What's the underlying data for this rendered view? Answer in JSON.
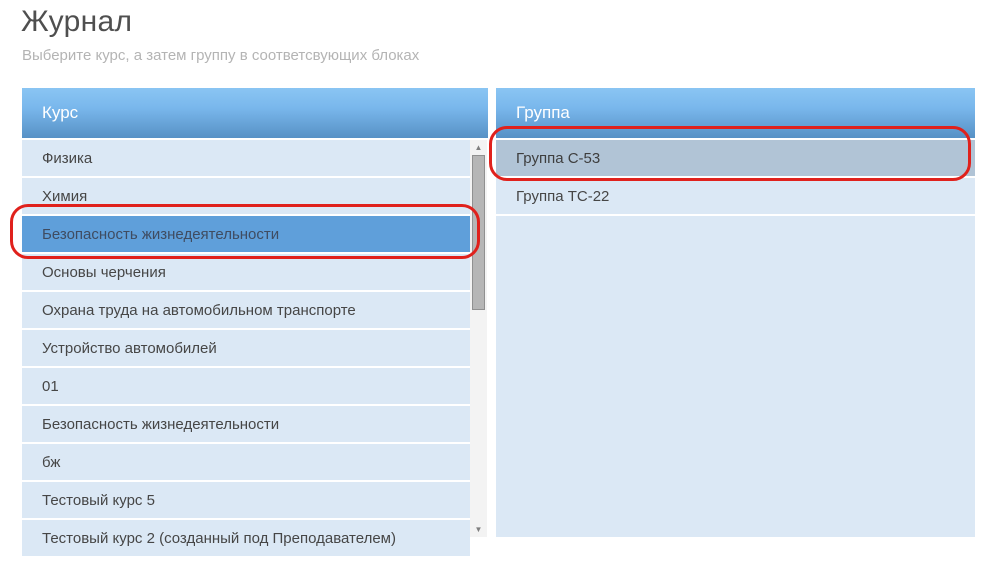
{
  "page": {
    "title": "Журнал",
    "subtitle": "Выберите курс, а затем группу в соответсвующих блоках"
  },
  "course_panel": {
    "header": "Курс",
    "items": [
      {
        "label": "Физика",
        "selected": false
      },
      {
        "label": "Химия",
        "selected": false
      },
      {
        "label": "Безопасность жизнедеятельности",
        "selected": true,
        "annotated": true
      },
      {
        "label": "Основы черчения",
        "selected": false
      },
      {
        "label": "Охрана труда на автомобильном транспорте",
        "selected": false
      },
      {
        "label": "Устройство автомобилей",
        "selected": false
      },
      {
        "label": "01",
        "selected": false
      },
      {
        "label": "Безопасность жизнедеятельности",
        "selected": false
      },
      {
        "label": "бж",
        "selected": false
      },
      {
        "label": "Тестовый курс 5",
        "selected": false
      },
      {
        "label": "Тестовый курс 2 (созданный под Преподавателем)",
        "selected": false,
        "clipped": true
      }
    ]
  },
  "group_panel": {
    "header": "Группа",
    "items": [
      {
        "label": "Группа С-53",
        "selected": true,
        "annotated": true
      },
      {
        "label": "Группа ТС-22",
        "selected": false
      }
    ]
  },
  "icons": {
    "scroll_up": "▲",
    "scroll_down": "▼"
  },
  "colors": {
    "header_gradient_top": "#8ac5f3",
    "header_gradient_bottom": "#5791c5",
    "row_bg": "#dbe8f5",
    "row_text": "#464646",
    "course_selected_bg": "#5f9fda",
    "group_selected_bg": "#b1c4d6",
    "annotation_red": "#e0211c",
    "title_text": "#4f4f4f",
    "subtitle_text": "#b4b4b4"
  }
}
